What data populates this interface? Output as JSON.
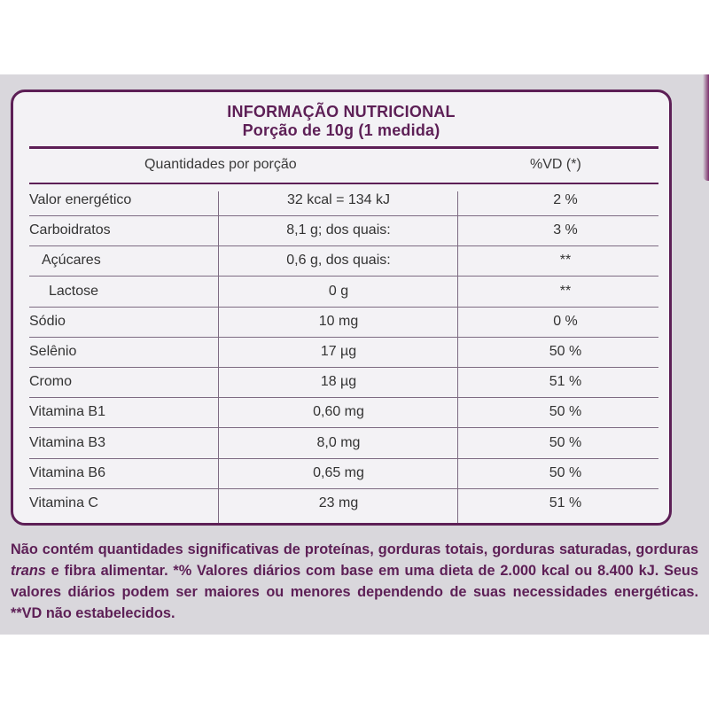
{
  "label": {
    "title": "INFORMAÇÃO NUTRICIONAL",
    "portion": "Porção de 10g (1 medida)",
    "col_quantity": "Quantidades por porção",
    "col_vd": "%VD (*)"
  },
  "rows": [
    {
      "name": "Valor energético",
      "amount": "32 kcal = 134 kJ",
      "vd": "2 %",
      "indent": 0
    },
    {
      "name": "Carboidratos",
      "amount": "8,1 g; dos quais:",
      "vd": "3 %",
      "indent": 0
    },
    {
      "name": "Açúcares",
      "amount": "0,6 g, dos quais:",
      "vd": "**",
      "indent": 1
    },
    {
      "name": "Lactose",
      "amount": "0 g",
      "vd": "**",
      "indent": 2
    },
    {
      "name": "Sódio",
      "amount": "10 mg",
      "vd": "0 %",
      "indent": 0
    },
    {
      "name": "Selênio",
      "amount": "17 µg",
      "vd": "50 %",
      "indent": 0
    },
    {
      "name": "Cromo",
      "amount": "18 µg",
      "vd": "51 %",
      "indent": 0
    },
    {
      "name": "Vitamina B1",
      "amount": "0,60 mg",
      "vd": "50 %",
      "indent": 0
    },
    {
      "name": "Vitamina B3",
      "amount": "8,0 mg",
      "vd": "50 %",
      "indent": 0
    },
    {
      "name": "Vitamina B6",
      "amount": "0,65 mg",
      "vd": "50 %",
      "indent": 0
    },
    {
      "name": "Vitamina C",
      "amount": "23 mg",
      "vd": "51 %",
      "indent": 0
    }
  ],
  "footnote": {
    "part1": "Não contém quantidades significativas de proteínas, gorduras totais, gorduras saturadas, gorduras ",
    "trans": "trans",
    "part2": " e fibra alimentar. *% Valores diários com base em uma dieta de 2.000 kcal ou 8.400 kJ. Seus valores diários podem ser maiores ou menores dependendo de suas necessidades energéticas. **VD não estabelecidos."
  },
  "colors": {
    "accent": "#5d1f56",
    "panel": "#d9d7dc",
    "card": "#f3f2f5"
  }
}
